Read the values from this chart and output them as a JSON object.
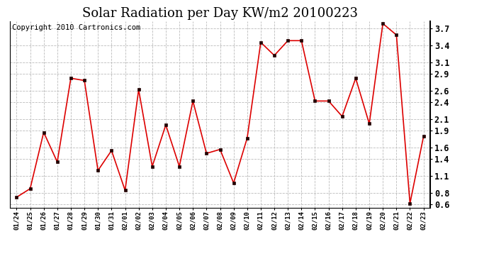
{
  "title": "Solar Radiation per Day KW/m2 20100223",
  "copyright": "Copyright 2010 Cartronics.com",
  "dates": [
    "01/24",
    "01/25",
    "01/26",
    "01/27",
    "01/28",
    "01/29",
    "01/30",
    "01/31",
    "02/01",
    "02/02",
    "02/03",
    "02/04",
    "02/05",
    "02/06",
    "02/07",
    "02/08",
    "02/09",
    "02/10",
    "02/11",
    "02/12",
    "02/13",
    "02/14",
    "02/15",
    "02/16",
    "02/17",
    "02/18",
    "02/19",
    "02/20",
    "02/21",
    "02/22",
    "02/23"
  ],
  "values": [
    0.73,
    0.88,
    1.87,
    1.35,
    2.82,
    2.78,
    1.2,
    1.55,
    0.85,
    2.62,
    1.27,
    2.0,
    1.27,
    2.42,
    1.5,
    1.57,
    0.98,
    1.77,
    3.45,
    3.22,
    3.48,
    3.48,
    2.42,
    2.42,
    2.15,
    2.82,
    2.02,
    3.78,
    3.58,
    0.62,
    1.8
  ],
  "line_color": "#dd0000",
  "marker_color": "#220000",
  "background_color": "#ffffff",
  "grid_color": "#bbbbbb",
  "ylim": [
    0.55,
    3.82
  ],
  "yticks": [
    0.6,
    0.8,
    1.1,
    1.4,
    1.6,
    1.9,
    2.1,
    2.4,
    2.6,
    2.9,
    3.1,
    3.4,
    3.7
  ],
  "title_fontsize": 13,
  "copyright_fontsize": 7.5
}
